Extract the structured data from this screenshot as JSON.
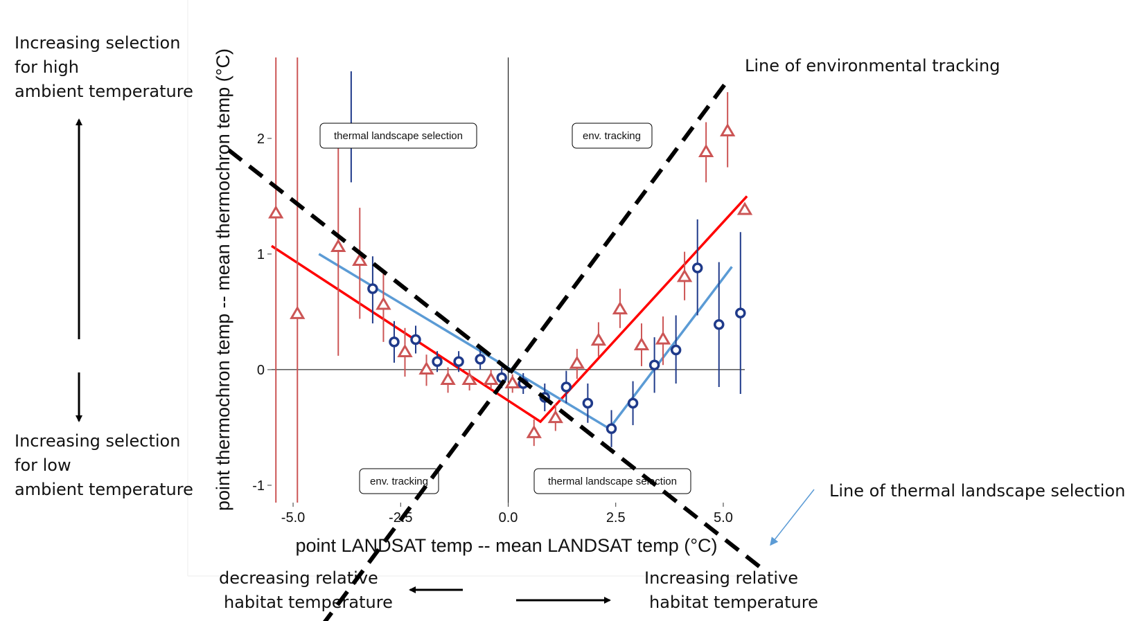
{
  "annotations": {
    "left_top_line1": "Increasing selection",
    "left_top_line2": "for high",
    "left_top_line3": "ambient temperature",
    "left_bottom_line1": "Increasing selection",
    "left_bottom_line2": "for low",
    "left_bottom_line3": "ambient temperature",
    "env_tracking_line": "Line of environmental tracking",
    "thermal_selection_line": "Line of thermal landscape selection",
    "bottom_left_line1": "decreasing relative",
    "bottom_left_line2": "habitat temperature",
    "bottom_right_line1": "Increasing relative",
    "bottom_right_line2": "habitat temperature"
  },
  "regions": {
    "top_left": "thermal landscape selection",
    "top_right": "env. tracking",
    "bottom_left": "env. tracking",
    "bottom_right": "thermal landscape selection"
  },
  "colors": {
    "red_series": "#cc5555",
    "blue_series": "#1f3a8a",
    "red_fit": "#ff0000",
    "blue_fit": "#5b9bd5",
    "arrow_blue": "#5b9bd5"
  },
  "chart_data": {
    "type": "scatter",
    "xlabel": "point LANDSAT temp -- mean LANDSAT temp (°C)",
    "ylabel": "point thermochron temp -- mean thermochron temp (°C)",
    "xlim": [
      -5.5,
      5.5
    ],
    "ylim": [
      -1.15,
      2.7
    ],
    "xticks": [
      "-5.0",
      "-2.5",
      "0.0",
      "2.5",
      "5.0"
    ],
    "yticks": [
      "-1",
      "0",
      "1",
      "2"
    ],
    "grid": false,
    "series": [
      {
        "marker": "triangle",
        "points": [
          {
            "x": -5.4,
            "y": 1.35,
            "lo": -1.15,
            "hi": 2.7
          },
          {
            "x": -4.9,
            "y": 0.48,
            "lo": -1.15,
            "hi": 2.7
          },
          {
            "x": -3.95,
            "y": 1.06,
            "lo": 0.12,
            "hi": 2.05
          },
          {
            "x": -3.45,
            "y": 0.94,
            "lo": 0.44,
            "hi": 1.4
          },
          {
            "x": -2.9,
            "y": 0.56,
            "lo": 0.24,
            "hi": 0.86
          },
          {
            "x": -2.4,
            "y": 0.15,
            "lo": -0.06,
            "hi": 0.36
          },
          {
            "x": -1.9,
            "y": 0.0,
            "lo": -0.14,
            "hi": 0.13
          },
          {
            "x": -1.4,
            "y": -0.09,
            "lo": -0.2,
            "hi": 0.02
          },
          {
            "x": -0.9,
            "y": -0.09,
            "lo": -0.18,
            "hi": 0.0
          },
          {
            "x": -0.4,
            "y": -0.09,
            "lo": -0.17,
            "hi": 0.0
          },
          {
            "x": 0.1,
            "y": -0.12,
            "lo": -0.2,
            "hi": -0.04
          },
          {
            "x": 0.6,
            "y": -0.55,
            "lo": -0.66,
            "hi": -0.43
          },
          {
            "x": 1.1,
            "y": -0.42,
            "lo": -0.53,
            "hi": -0.3
          },
          {
            "x": 1.6,
            "y": 0.05,
            "lo": -0.08,
            "hi": 0.18
          },
          {
            "x": 2.1,
            "y": 0.25,
            "lo": 0.11,
            "hi": 0.41
          },
          {
            "x": 2.6,
            "y": 0.52,
            "lo": 0.36,
            "hi": 0.7
          },
          {
            "x": 3.1,
            "y": 0.21,
            "lo": 0.03,
            "hi": 0.4
          },
          {
            "x": 3.6,
            "y": 0.26,
            "lo": 0.04,
            "hi": 0.46
          },
          {
            "x": 4.1,
            "y": 0.8,
            "lo": 0.6,
            "hi": 1.02
          },
          {
            "x": 4.6,
            "y": 1.88,
            "lo": 1.62,
            "hi": 2.14
          },
          {
            "x": 5.1,
            "y": 2.06,
            "lo": 1.75,
            "hi": 2.4
          },
          {
            "x": 5.5,
            "y": 1.38,
            "lo": 1.38,
            "hi": 1.38
          }
        ]
      },
      {
        "marker": "circle",
        "points": [
          {
            "x": -3.65,
            "y": 2.08,
            "lo": 1.62,
            "hi": 2.58
          },
          {
            "x": -3.15,
            "y": 0.7,
            "lo": 0.4,
            "hi": 0.98
          },
          {
            "x": -2.65,
            "y": 0.24,
            "lo": 0.06,
            "hi": 0.42
          },
          {
            "x": -2.15,
            "y": 0.26,
            "lo": 0.14,
            "hi": 0.38
          },
          {
            "x": -1.65,
            "y": 0.07,
            "lo": -0.02,
            "hi": 0.16
          },
          {
            "x": -1.15,
            "y": 0.07,
            "lo": -0.02,
            "hi": 0.16
          },
          {
            "x": -0.65,
            "y": 0.09,
            "lo": 0.0,
            "hi": 0.18
          },
          {
            "x": -0.15,
            "y": -0.07,
            "lo": -0.16,
            "hi": 0.02
          },
          {
            "x": 0.35,
            "y": -0.12,
            "lo": -0.21,
            "hi": -0.03
          },
          {
            "x": 0.85,
            "y": -0.24,
            "lo": -0.36,
            "hi": -0.12
          },
          {
            "x": 1.35,
            "y": -0.15,
            "lo": -0.29,
            "hi": -0.01
          },
          {
            "x": 1.85,
            "y": -0.29,
            "lo": -0.46,
            "hi": -0.12
          },
          {
            "x": 2.4,
            "y": -0.51,
            "lo": -0.67,
            "hi": -0.35
          },
          {
            "x": 2.9,
            "y": -0.29,
            "lo": -0.48,
            "hi": -0.1
          },
          {
            "x": 3.4,
            "y": 0.04,
            "lo": -0.2,
            "hi": 0.28
          },
          {
            "x": 3.9,
            "y": 0.17,
            "lo": -0.12,
            "hi": 0.47
          },
          {
            "x": 4.4,
            "y": 0.88,
            "lo": 0.47,
            "hi": 1.3
          },
          {
            "x": 4.9,
            "y": 0.39,
            "lo": -0.15,
            "hi": 0.93
          },
          {
            "x": 5.4,
            "y": 0.49,
            "lo": -0.21,
            "hi": 1.19
          }
        ]
      }
    ],
    "fits": [
      {
        "points": [
          [
            -5.5,
            1.07
          ],
          [
            0.75,
            -0.45
          ],
          [
            5.55,
            1.5
          ]
        ]
      },
      {
        "points": [
          [
            -4.4,
            1.0
          ],
          [
            2.35,
            -0.51
          ],
          [
            5.2,
            0.89
          ]
        ]
      }
    ],
    "reference_lines": [
      {
        "style": "dashed",
        "points": [
          [
            -4.7,
            -2.4
          ],
          [
            5.1,
            2.5
          ]
        ]
      },
      {
        "style": "dashed",
        "points": [
          [
            -6.5,
            1.9
          ],
          [
            6.0,
            -1.75
          ]
        ]
      }
    ]
  }
}
